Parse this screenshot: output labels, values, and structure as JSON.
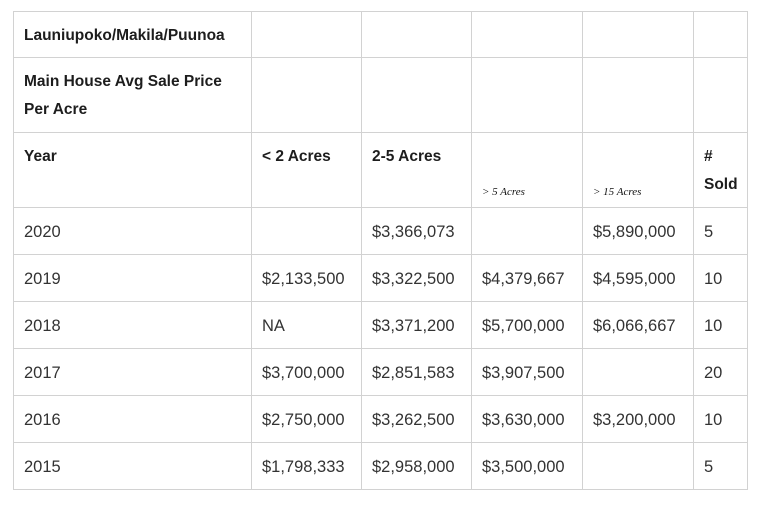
{
  "table": {
    "title": "Launiupoko/Makila/Puunoa",
    "subtitle": "Main House Avg Sale Price Per Acre",
    "headers": [
      "Year",
      "< 2 Acres",
      "2-5 Acres",
      "> 5 Acres",
      "> 15 Acres",
      "# Sold"
    ],
    "rows": [
      [
        "2020",
        "",
        "$3,366,073",
        "",
        "$5,890,000",
        "5"
      ],
      [
        "2019",
        "$2,133,500",
        "$3,322,500",
        "$4,379,667",
        "$4,595,000",
        "10"
      ],
      [
        "2018",
        "NA",
        "$3,371,200",
        "$5,700,000",
        "$6,066,667",
        "10"
      ],
      [
        "2017",
        "$3,700,000",
        "$2,851,583",
        "$3,907,500",
        "",
        "20"
      ],
      [
        "2016",
        "$2,750,000",
        "$3,262,500",
        "$3,630,000",
        "$3,200,000",
        "10"
      ],
      [
        "2015",
        "$1,798,333",
        "$2,958,000",
        "$3,500,000",
        "",
        "5"
      ]
    ]
  }
}
